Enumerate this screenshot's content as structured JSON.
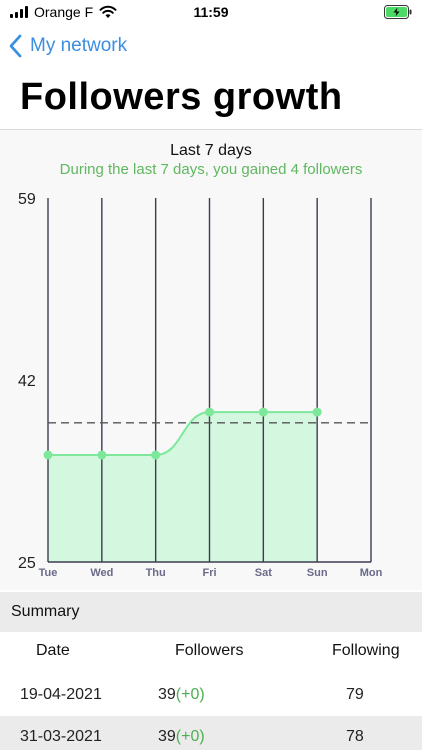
{
  "status_bar": {
    "carrier": "Orange F",
    "time": "11:59"
  },
  "nav": {
    "back_label": "My network"
  },
  "page_title": "Followers growth",
  "chart_data": {
    "type": "area",
    "title": "Last 7 days",
    "subtitle": "During the last 7 days, you gained 4 followers",
    "categories": [
      "Tue",
      "Wed",
      "Thu",
      "Fri",
      "Sat",
      "Sun",
      "Mon"
    ],
    "series": [
      {
        "values": [
          35,
          35,
          35,
          39,
          39,
          39,
          null
        ]
      }
    ],
    "y_ticks": [
      "59",
      "42",
      "25"
    ],
    "ylim": [
      25,
      59
    ],
    "reference_line": 38,
    "colors": {
      "line": "#7de89b",
      "fill": "#d4f7df",
      "point": "#7de89b",
      "grid": "#3c3c50",
      "reference": "#555555"
    },
    "grid": true
  },
  "summary": {
    "title": "Summary",
    "columns": [
      "Date",
      "Followers",
      "Following"
    ],
    "rows": [
      {
        "date": "19-04-2021",
        "followers": "39",
        "delta": "(+0)",
        "following": "79"
      },
      {
        "date": "31-03-2021",
        "followers": "39",
        "delta": "(+0)",
        "following": "78"
      }
    ]
  }
}
